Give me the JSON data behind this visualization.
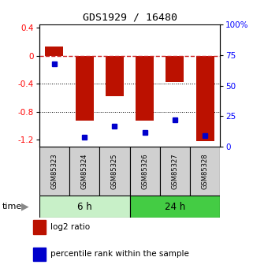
{
  "title": "GDS1929 / 16480",
  "samples": [
    "GSM85323",
    "GSM85324",
    "GSM85325",
    "GSM85326",
    "GSM85327",
    "GSM85328"
  ],
  "log2_ratio": [
    0.13,
    -0.93,
    -0.57,
    -0.93,
    -0.37,
    -1.22
  ],
  "percentile_rank": [
    68,
    8,
    17,
    12,
    22,
    9
  ],
  "groups": [
    {
      "label": "6 h",
      "indices": [
        0,
        1,
        2
      ],
      "color": "#c8f0c8"
    },
    {
      "label": "24 h",
      "indices": [
        3,
        4,
        5
      ],
      "color": "#44cc44"
    }
  ],
  "bar_color": "#bb1100",
  "dot_color": "#0000cc",
  "ylim_left": [
    -1.3,
    0.45
  ],
  "ylim_right": [
    0,
    100
  ],
  "yticks_left": [
    0.4,
    0.0,
    -0.4,
    -0.8,
    -1.2
  ],
  "yticks_right": [
    100,
    75,
    50,
    25,
    0
  ],
  "hline_y": 0.0,
  "dotted_lines": [
    -0.4,
    -0.8
  ],
  "bar_width": 0.6,
  "label_box_color": "#d0d0d0",
  "legend_items": [
    "log2 ratio",
    "percentile rank within the sample"
  ]
}
